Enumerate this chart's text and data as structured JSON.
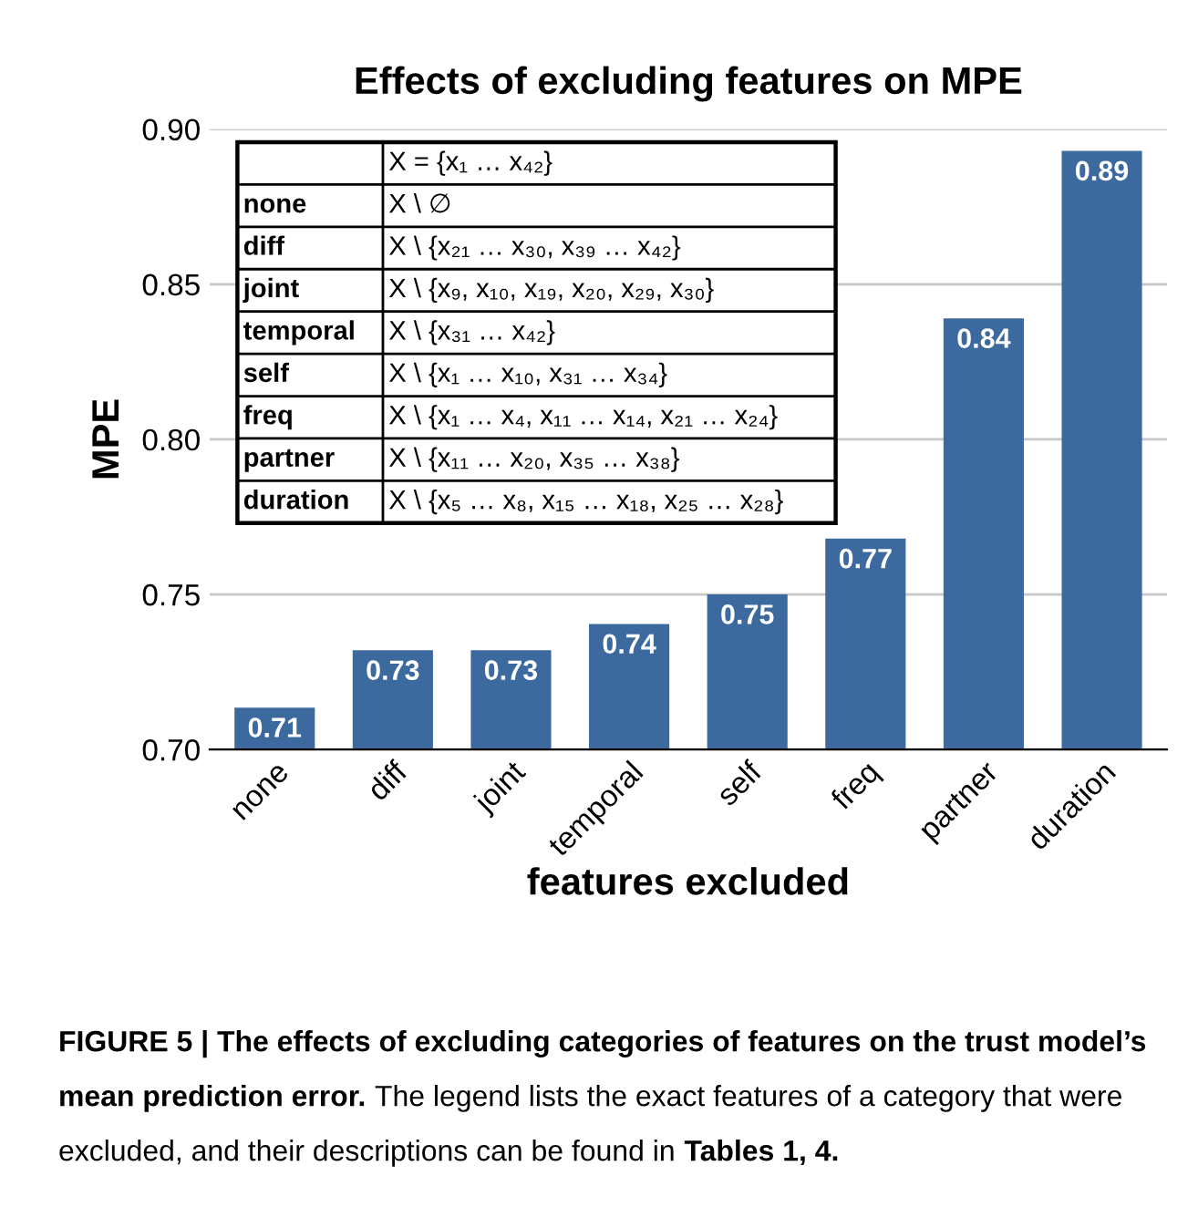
{
  "chart_data": {
    "type": "bar",
    "title": "Effects of excluding features on MPE",
    "xlabel": "features excluded",
    "ylabel": "MPE",
    "categories": [
      "none",
      "diff",
      "joint",
      "temporal",
      "self",
      "freq",
      "partner",
      "duration"
    ],
    "values": [
      0.7135,
      0.732,
      0.732,
      0.7405,
      0.75,
      0.768,
      0.839,
      0.893
    ],
    "value_labels": [
      "0.71",
      "0.73",
      "0.73",
      "0.74",
      "0.75",
      "0.77",
      "0.84",
      "0.89"
    ],
    "color": "#3c6a9e",
    "ylim": [
      0.7,
      0.9
    ],
    "yticks": [
      {
        "value": 0.7,
        "label": "0.70"
      },
      0.75,
      {
        "value": 0.8,
        "label": "0.80"
      },
      0.85,
      {
        "value": 0.9,
        "label": "0.90"
      }
    ],
    "grid": "y",
    "annotations": [
      "X = {x₁ … x₄₂}",
      "none",
      "X \\ ∅",
      "diff",
      "X \\ {x₂₁ … x₃₀, x₃₉ … x₄₂}",
      "joint",
      "X \\ {x₉, x₁₀, x₁₉, x₂₀, x₂₉, x₃₀}",
      "temporal",
      "X \\ {x₃₁ … x₄₂}",
      "self",
      "X \\ {x₁ … x₁₀, x₃₁ … x₃₄}",
      "freq",
      "X \\ {x₁ … x₄, x₁₁ … x₁₄, x₂₁ … x₂₄}",
      "partner",
      "X \\ {x₁₁ … x₂₀, x₃₅ … x₃₈}",
      "duration",
      "X \\ {x₅ … x₈, x₁₅ … x₁₈, x₂₅ … x₂₈}",
      "FIGURE 5 | The effects of excluding categories of features on the trust model’s mean prediction error.",
      "The legend lists the exact features of a category that were excluded, and their descriptions can be found in",
      "Tables 1, 4."
    ]
  }
}
